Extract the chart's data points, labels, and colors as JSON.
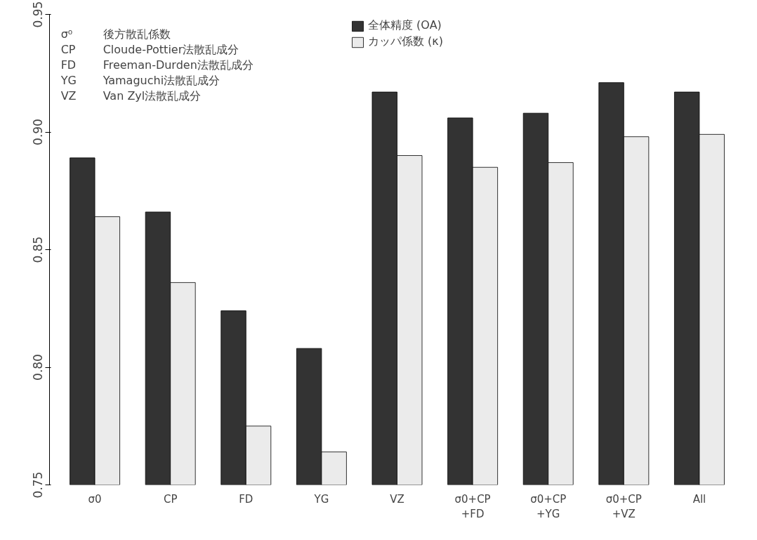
{
  "chart_data": {
    "type": "bar",
    "categories": [
      "σ0",
      "CP",
      "FD",
      "YG",
      "VZ",
      "σ0+CP\n+FD",
      "σ0+CP\n+YG",
      "σ0+CP\n+VZ",
      "All"
    ],
    "series": [
      {
        "name": "全体精度 (OA)",
        "color": "#333333",
        "values": [
          0.889,
          0.866,
          0.824,
          0.808,
          0.917,
          0.906,
          0.908,
          0.921,
          0.917
        ]
      },
      {
        "name": "カッパ係数 (κ)",
        "color": "#ebebeb",
        "values": [
          0.864,
          0.836,
          0.775,
          0.764,
          0.89,
          0.885,
          0.887,
          0.898,
          0.899
        ]
      }
    ],
    "ylim": [
      0.75,
      0.95
    ],
    "yticks": [
      0.75,
      {
        "value": 0.8,
        "label": "0.80"
      },
      0.85,
      {
        "value": 0.9,
        "label": "0.90"
      },
      0.95
    ],
    "grid": false,
    "legend": "top",
    "annotations": [
      "σ⁰ 後方散乱係数",
      "CP Cloude-Pottier法散乱成分",
      "FD Freeman-Durden法散乱成分",
      "YG Yamaguchi法散乱成分",
      "VZ Van Zyl法散乱成分"
    ]
  }
}
